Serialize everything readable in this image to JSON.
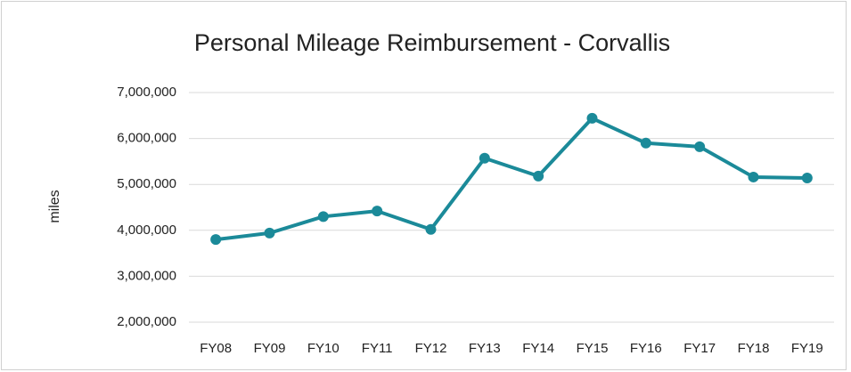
{
  "chart_data": {
    "type": "line",
    "title": "Personal Mileage Reimbursement  - Corvallis",
    "y_label": "miles",
    "categories": [
      "FY08",
      "FY09",
      "FY10",
      "FY11",
      "FY12",
      "FY13",
      "FY14",
      "FY15",
      "FY16",
      "FY17",
      "FY18",
      "FY19"
    ],
    "values": [
      3800000,
      3940000,
      4300000,
      4420000,
      4020000,
      5570000,
      5180000,
      6440000,
      5900000,
      5820000,
      5160000,
      5140000
    ],
    "color": "#1b8a99",
    "ylim": [
      2000000,
      7000000
    ],
    "yticks": [
      {
        "value": 2000000,
        "label": "2,000,000"
      },
      {
        "value": 3000000,
        "label": "3,000,000"
      },
      {
        "value": 4000000,
        "label": "4,000,000"
      },
      {
        "value": 5000000,
        "label": "5,000,000"
      },
      {
        "value": 6000000,
        "label": "6,000,000"
      },
      {
        "value": 7000000,
        "label": "7,000,000"
      }
    ],
    "grid": true
  }
}
